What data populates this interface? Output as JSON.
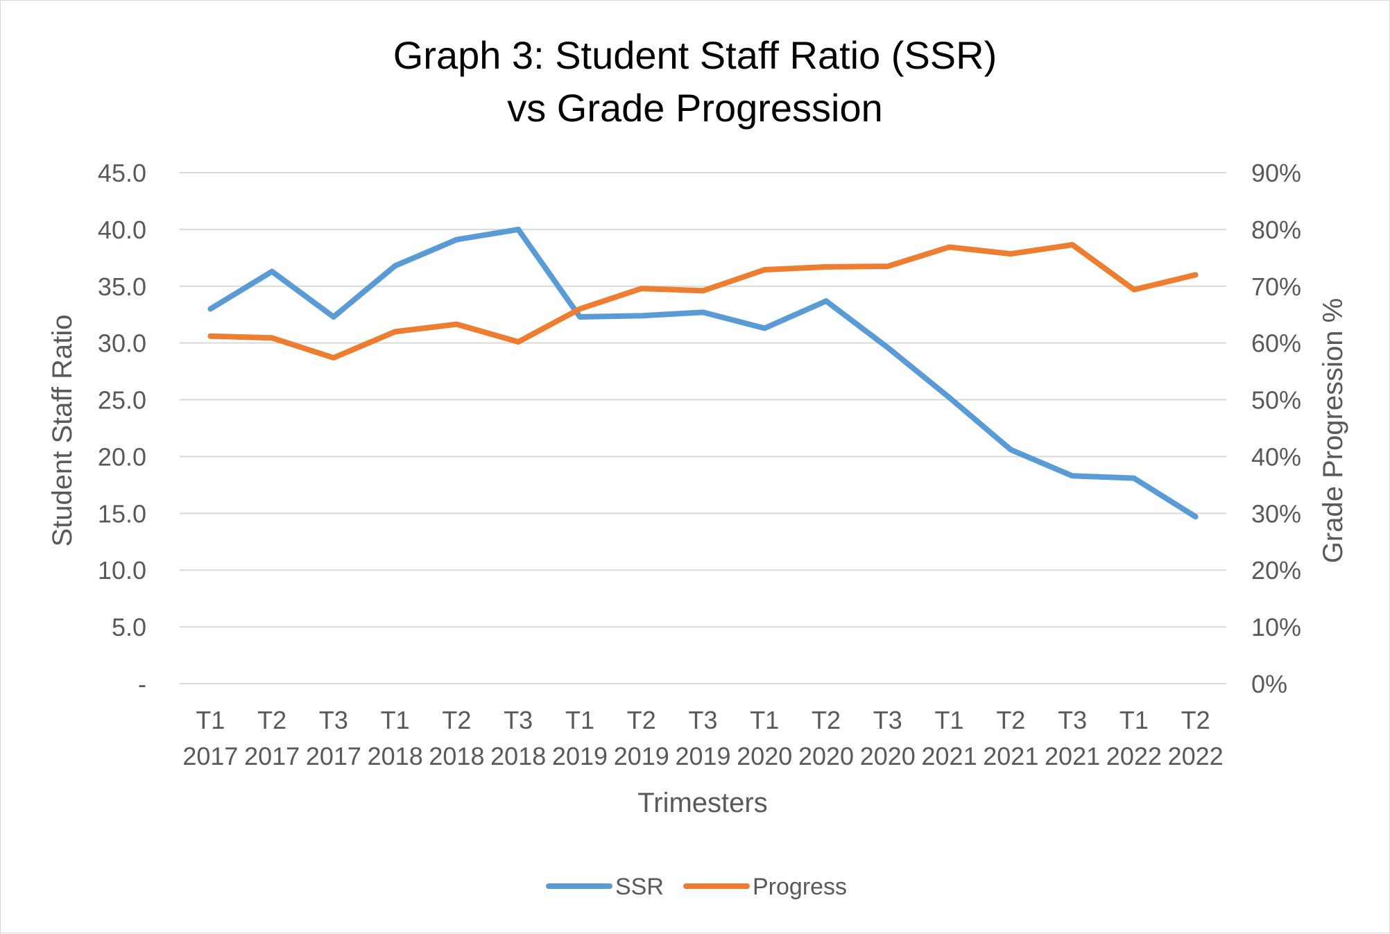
{
  "chart_data": {
    "type": "line",
    "title": [
      "Graph 3: Student Staff Ratio (SSR)",
      "vs Grade Progression"
    ],
    "xlabel": "Trimesters",
    "ylabel_left": "Student Staff Ratio",
    "ylabel_right": "Grade Progression %",
    "categories": [
      [
        "T1",
        "2017"
      ],
      [
        "T2",
        "2017"
      ],
      [
        "T3",
        "2017"
      ],
      [
        "T1",
        "2018"
      ],
      [
        "T2",
        "2018"
      ],
      [
        "T3",
        "2018"
      ],
      [
        "T1",
        "2019"
      ],
      [
        "T2",
        "2019"
      ],
      [
        "T3",
        "2019"
      ],
      [
        "T1",
        "2020"
      ],
      [
        "T2",
        "2020"
      ],
      [
        "T3",
        "2020"
      ],
      [
        "T1",
        "2021"
      ],
      [
        "T2",
        "2021"
      ],
      [
        "T3",
        "2021"
      ],
      [
        "T1",
        "2022"
      ],
      [
        "T2",
        "2022"
      ]
    ],
    "ylim_left": [
      0,
      45
    ],
    "ylim_right": [
      0,
      90
    ],
    "y_ticks_left": [
      "-",
      "5.0",
      "10.0",
      "15.0",
      "20.0",
      "25.0",
      "30.0",
      "35.0",
      "40.0",
      "45.0"
    ],
    "y_ticks_right": [
      "0%",
      "10%",
      "20%",
      "30%",
      "40%",
      "50%",
      "60%",
      "70%",
      "80%",
      "90%"
    ],
    "grid": true,
    "legend_position": "bottom",
    "series": [
      {
        "name": "SSR",
        "axis": "left",
        "color": "#5B9BD5",
        "values": [
          33.0,
          36.3,
          32.3,
          36.8,
          39.1,
          40.0,
          32.3,
          32.4,
          32.7,
          31.3,
          33.7,
          29.6,
          25.2,
          20.6,
          18.3,
          18.1,
          14.7
        ]
      },
      {
        "name": "Progress",
        "axis": "right",
        "color": "#ED7D31",
        "values": [
          61.2,
          60.9,
          57.4,
          62.0,
          63.3,
          60.2,
          66.0,
          69.6,
          69.2,
          72.9,
          73.4,
          73.5,
          76.9,
          75.7,
          77.3,
          69.4,
          72.0
        ]
      }
    ]
  }
}
